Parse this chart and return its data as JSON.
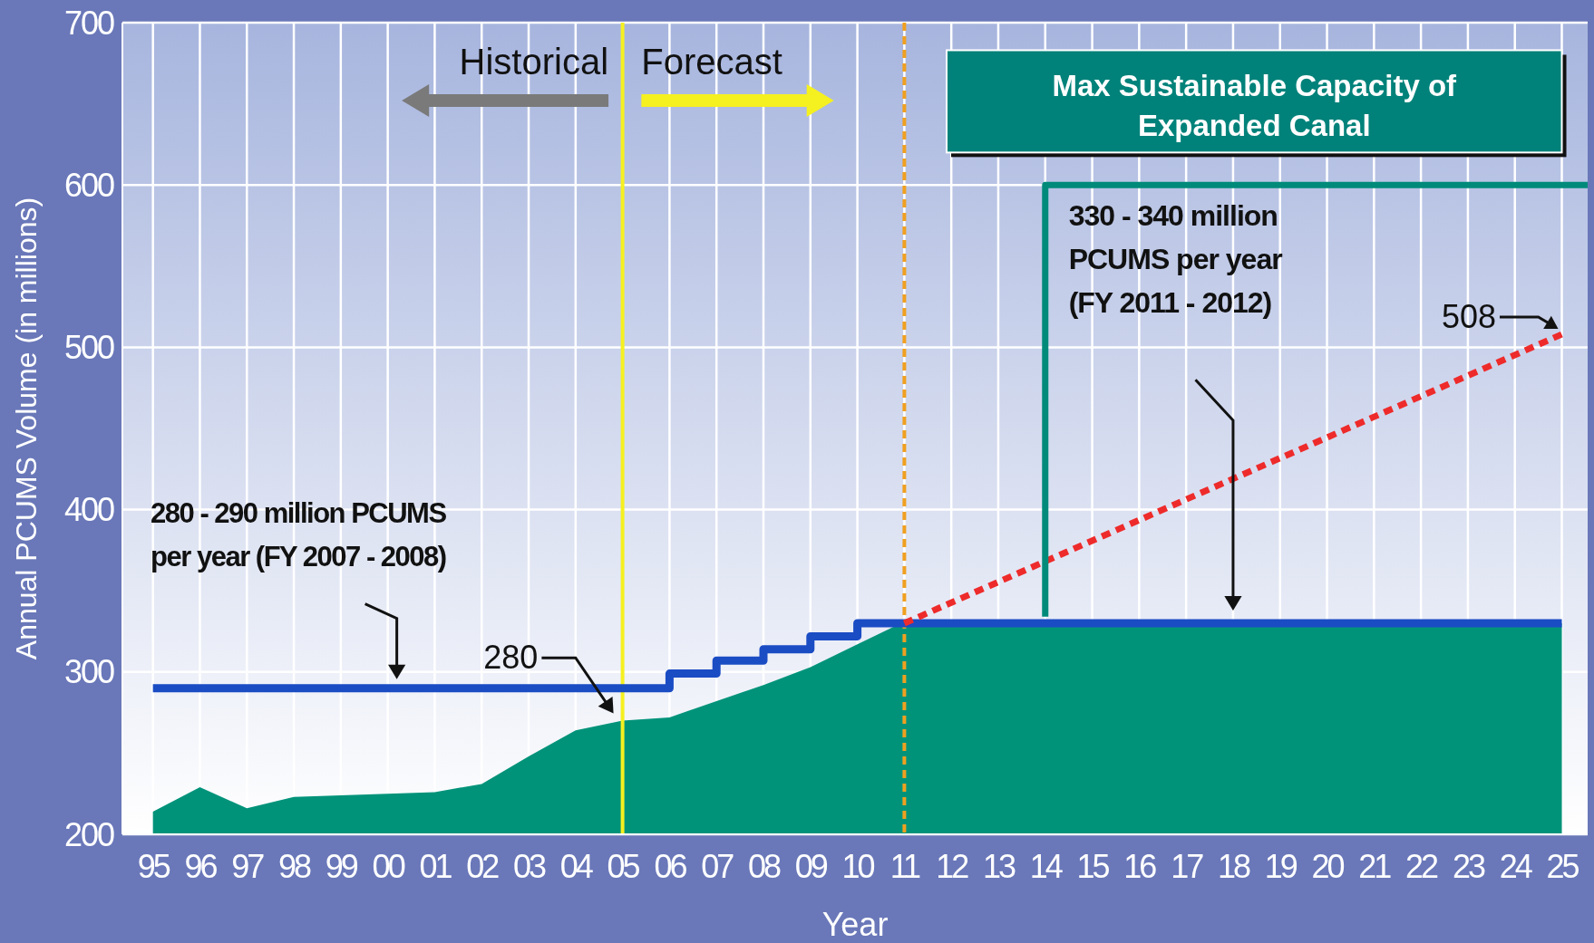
{
  "chart_data": {
    "type": "area",
    "xlabel": "Year",
    "ylabel": "Annual PCUMS Volume (in millions)",
    "xlim": [
      1994.35,
      2025.55
    ],
    "ylim": [
      200,
      700
    ],
    "xticks": [
      {
        "value": 1995,
        "label": "95"
      },
      {
        "value": 1996,
        "label": "96"
      },
      {
        "value": 1997,
        "label": "97"
      },
      {
        "value": 1998,
        "label": "98"
      },
      {
        "value": 1999,
        "label": "99"
      },
      {
        "value": 2000,
        "label": "00"
      },
      {
        "value": 2001,
        "label": "01"
      },
      {
        "value": 2002,
        "label": "02"
      },
      {
        "value": 2003,
        "label": "03"
      },
      {
        "value": 2004,
        "label": "04"
      },
      {
        "value": 2005,
        "label": "05"
      },
      {
        "value": 2006,
        "label": "06"
      },
      {
        "value": 2007,
        "label": "07"
      },
      {
        "value": 2008,
        "label": "08"
      },
      {
        "value": 2009,
        "label": "09"
      },
      {
        "value": 2010,
        "label": "10"
      },
      {
        "value": 2011,
        "label": "11"
      },
      {
        "value": 2012,
        "label": "12"
      },
      {
        "value": 2013,
        "label": "13"
      },
      {
        "value": 2014,
        "label": "14"
      },
      {
        "value": 2015,
        "label": "15"
      },
      {
        "value": 2016,
        "label": "16"
      },
      {
        "value": 2017,
        "label": "17"
      },
      {
        "value": 2018,
        "label": "18"
      },
      {
        "value": 2019,
        "label": "19"
      },
      {
        "value": 2020,
        "label": "20"
      },
      {
        "value": 2021,
        "label": "21"
      },
      {
        "value": 2022,
        "label": "22"
      },
      {
        "value": 2023,
        "label": "23"
      },
      {
        "value": 2024,
        "label": "24"
      },
      {
        "value": 2025,
        "label": "25"
      }
    ],
    "yticks": [
      200,
      300,
      400,
      500,
      600,
      700
    ],
    "grid": true,
    "series": [
      {
        "color": "#00937a",
        "x": [
          1995,
          1996,
          1997,
          1998,
          1999,
          2000,
          2001,
          2002,
          2003,
          2004,
          2005,
          2006,
          2007,
          2008,
          2009,
          2010,
          2011,
          2012,
          2013,
          2014,
          2015,
          2016,
          2017,
          2018,
          2019,
          2020,
          2021,
          2022,
          2023,
          2024,
          2025
        ],
        "values": [
          214,
          229,
          216,
          223,
          224,
          225,
          226,
          231,
          248,
          264,
          270,
          272,
          282,
          292,
          303,
          317,
          331,
          330,
          330,
          330,
          330,
          330,
          330,
          330,
          330,
          330,
          330,
          330,
          330,
          330,
          330
        ]
      },
      {
        "type": "step",
        "color": "#1a4cc4",
        "x": [
          1995,
          2006,
          2007,
          2008,
          2009,
          2010,
          2025
        ],
        "values": [
          290,
          299,
          307,
          314,
          322,
          330,
          330
        ]
      },
      {
        "type": "line",
        "color": "#ee2b2b",
        "line_style": "dashed",
        "x": [
          2011,
          2025
        ],
        "values": [
          330,
          508
        ]
      },
      {
        "type": "line",
        "color": "#008a7a",
        "x": [
          2014,
          2014,
          2025.55
        ],
        "values": [
          334,
          600,
          600
        ]
      }
    ],
    "ref_lines": [
      {
        "axis": "x",
        "value": 2005,
        "color": "#f5f020",
        "line_style": "solid"
      },
      {
        "axis": "x",
        "value": 2011,
        "color": "#f0a020",
        "line_style": "dashed"
      }
    ],
    "annotations": [
      "Historical",
      "Forecast",
      "Max Sustainable Capacity of Expanded Canal",
      "280 - 290 million PCUMS per year (FY 2007 - 2008)",
      {
        "text": "280",
        "x": 2005,
        "y": 270
      },
      "330 - 340 million PCUMS per year (FY 2011 - 2012)",
      {
        "text": "508",
        "x": 2025,
        "y": 508
      }
    ]
  }
}
